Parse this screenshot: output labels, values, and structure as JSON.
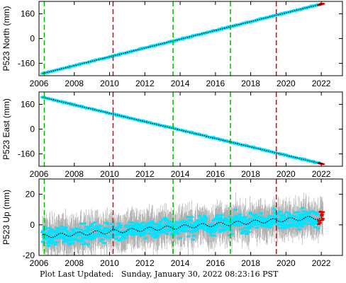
{
  "footer": {
    "label": "Plot Last Updated:",
    "timestamp": "Sunday, January 30, 2022 08:23:16 PST"
  },
  "colors": {
    "data": "#00e5ff",
    "error_bar": "#b0b0b0",
    "model": "#000000",
    "recent": "#e00000",
    "green_line": "#00bb00",
    "red_line": "#e00000"
  },
  "chart_data": [
    {
      "type": "scatter",
      "ylabel": "P523 North (mm)",
      "xlim": [
        2006.0,
        2023.2
      ],
      "ylim": [
        -240,
        240
      ],
      "yticks": [
        -160,
        0,
        160
      ],
      "xticks": [
        2006,
        2008,
        2010,
        2012,
        2014,
        2016,
        2018,
        2020,
        2022
      ],
      "series": [
        {
          "kind": "trend",
          "x": [
            2006.2,
            2022.1
          ],
          "values": [
            -226,
            226
          ]
        }
      ],
      "noise_mm": 3,
      "error_mm": 2,
      "green_lines": [
        2006.3,
        2013.6,
        2016.85
      ],
      "red_lines": [
        2010.2,
        2019.45
      ]
    },
    {
      "type": "scatter",
      "ylabel": "P523 East (mm)",
      "xlim": [
        2006.0,
        2023.2
      ],
      "ylim": [
        -240,
        240
      ],
      "yticks": [
        -160,
        0,
        160
      ],
      "xticks": [
        2006,
        2008,
        2010,
        2012,
        2014,
        2016,
        2018,
        2020,
        2022
      ],
      "series": [
        {
          "kind": "trend",
          "x": [
            2006.2,
            2022.1
          ],
          "values": [
            206,
            -226
          ]
        }
      ],
      "noise_mm": 3,
      "error_mm": 2,
      "green_lines": [
        2006.3,
        2013.6,
        2016.85
      ],
      "red_lines": [
        2010.2,
        2019.45
      ]
    },
    {
      "type": "scatter",
      "ylabel": "P523 Up (mm)",
      "xlim": [
        2006.0,
        2023.2
      ],
      "ylim": [
        -20,
        30
      ],
      "yticks": [
        -20,
        0,
        20
      ],
      "xticks": [
        2006,
        2008,
        2010,
        2012,
        2014,
        2016,
        2018,
        2020,
        2022
      ],
      "series": [
        {
          "kind": "trend",
          "x": [
            2006.2,
            2022.1
          ],
          "values": [
            -7.5,
            5
          ]
        }
      ],
      "seasonal_mm": 1.2,
      "noise_mm": 5,
      "error_mm": 9,
      "green_lines": [
        2006.3,
        2013.6,
        2016.85
      ],
      "red_lines": [
        2010.2,
        2019.45
      ]
    }
  ]
}
